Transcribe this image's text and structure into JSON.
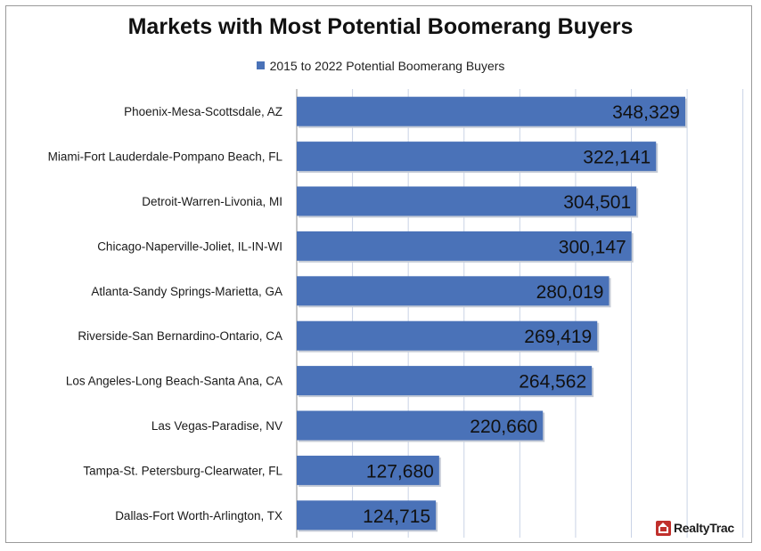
{
  "chart_data": {
    "type": "bar",
    "orientation": "horizontal",
    "title": "Markets with Most Potential Boomerang Buyers",
    "categories": [
      "Phoenix-Mesa-Scottsdale, AZ",
      "Miami-Fort Lauderdale-Pompano Beach, FL",
      "Detroit-Warren-Livonia, MI",
      "Chicago-Naperville-Joliet, IL-IN-WI",
      "Atlanta-Sandy Springs-Marietta, GA",
      "Riverside-San Bernardino-Ontario, CA",
      "Los Angeles-Long Beach-Santa Ana, CA",
      "Las Vegas-Paradise, NV",
      "Tampa-St. Petersburg-Clearwater, FL",
      "Dallas-Fort Worth-Arlington, TX"
    ],
    "series": [
      {
        "name": "2015 to 2022 Potential Boomerang Buyers",
        "color": "#4a72b8",
        "values": [
          348329,
          322141,
          304501,
          300147,
          280019,
          269419,
          264562,
          220660,
          127680,
          124715
        ],
        "labels": [
          "348,329",
          "322,141",
          "304,501",
          "300,147",
          "280,019",
          "269,419",
          "264,562",
          "220,660",
          "127,680",
          "124,715"
        ]
      }
    ],
    "xlim": [
      0,
      400000
    ],
    "grid": true,
    "legend_position": "top-center",
    "data_labels": "inside-end"
  },
  "branding": {
    "logo_text": "RealtyTrac",
    "logo_color": "#c0302c"
  }
}
